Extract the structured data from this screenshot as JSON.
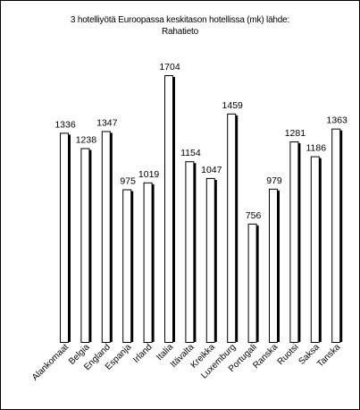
{
  "chart_data": {
    "type": "bar",
    "title_line1": "3 hotelliyötä Euroopassa keskitason hotellissa (mk) lähde:",
    "title_line2": "Rahatieto",
    "xlabel": "",
    "ylabel": "",
    "ylim": [
      0,
      1800
    ],
    "grid": false,
    "legend": "none",
    "categories": [
      "Alankomaat",
      "Belgia",
      "England",
      "Espanja",
      "Irland",
      "Italia",
      "Itävalta",
      "Kreikka",
      "Luxemburg",
      "Portugali",
      "Ranska",
      "Ruotsi",
      "Saksa",
      "Tanska"
    ],
    "values": [
      1336,
      1238,
      1347,
      975,
      1019,
      1704,
      1154,
      1047,
      1459,
      756,
      979,
      1281,
      1186,
      1363
    ],
    "colors": {
      "bar_fill": "#ffffff",
      "bar_outline": "#000000",
      "bar_shadow": "#000000"
    }
  }
}
